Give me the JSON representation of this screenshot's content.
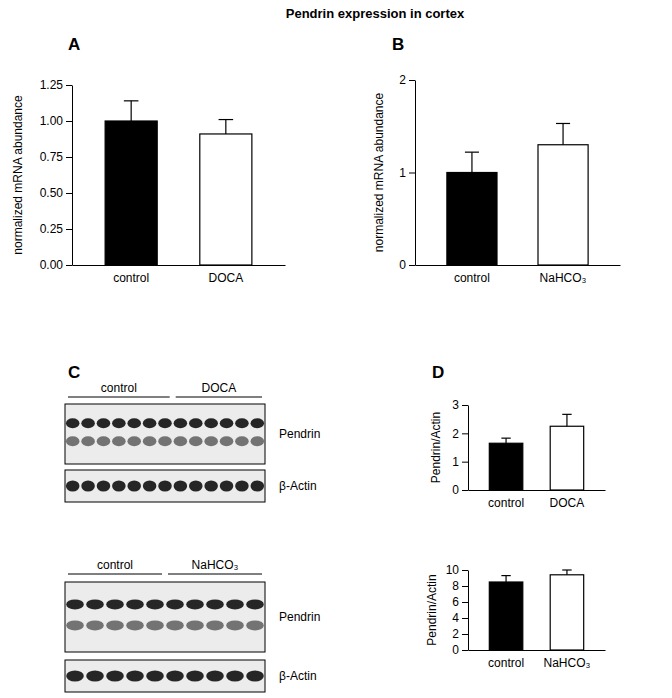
{
  "title": "Pendrin expression in cortex",
  "chart_data": [
    {
      "type": "bar",
      "panel": "A",
      "y_label": "normalized mRNA abundance",
      "categories": [
        "control",
        "DOCA"
      ],
      "values": [
        1.0,
        0.91
      ],
      "errors": [
        0.14,
        0.1
      ],
      "colors": [
        "#000000",
        "#ffffff"
      ],
      "ylim": [
        0,
        1.25
      ],
      "yticks": [
        {
          "value": 0,
          "label": "0.00"
        },
        {
          "value": 0.25,
          "label": "0.25"
        },
        {
          "value": 0.5,
          "label": "0.50"
        },
        {
          "value": 0.75,
          "label": "0.75"
        },
        {
          "value": 1,
          "label": "1.00"
        },
        {
          "value": 1.25,
          "label": "1.25"
        }
      ]
    },
    {
      "type": "bar",
      "panel": "B",
      "y_label": "normalized mRNA abundance",
      "categories": [
        "control",
        "NaHCO₃"
      ],
      "values": [
        1.0,
        1.3
      ],
      "errors": [
        0.22,
        0.23
      ],
      "colors": [
        "#000000",
        "#ffffff"
      ],
      "ylim": [
        0,
        2
      ],
      "yticks": [
        0,
        1,
        2
      ]
    },
    {
      "type": "bar",
      "panel": "D",
      "y_label": "Pendrin/Actin",
      "categories": [
        "control",
        "DOCA"
      ],
      "values": [
        1.65,
        2.25
      ],
      "errors": [
        0.18,
        0.42
      ],
      "colors": [
        "#000000",
        "#ffffff"
      ],
      "ylim": [
        0,
        3
      ],
      "yticks": [
        0,
        1,
        2,
        3
      ]
    },
    {
      "type": "bar",
      "y_label": "Pendrin/Actin",
      "categories": [
        "control",
        "NaHCO₃"
      ],
      "values": [
        8.5,
        9.4
      ],
      "errors": [
        0.8,
        0.6
      ],
      "colors": [
        "#000000",
        "#ffffff"
      ],
      "ylim": [
        0,
        10
      ],
      "yticks": [
        0,
        2,
        4,
        6,
        8,
        10
      ]
    }
  ],
  "blot_panel": "C",
  "blots": [
    {
      "groups": [
        "control",
        "DOCA"
      ],
      "rows": [
        "Pendrin",
        "β-Actin"
      ]
    },
    {
      "groups": [
        "control",
        "NaHCO₃"
      ],
      "rows": [
        "Pendrin",
        "β-Actin"
      ]
    }
  ]
}
